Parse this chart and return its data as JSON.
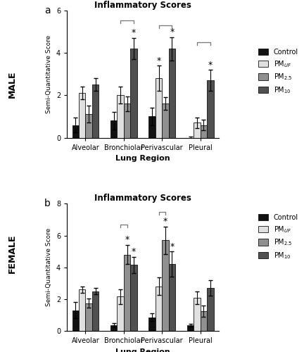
{
  "title": "Inflammatory Scores",
  "xlabel": "Lung Region",
  "ylabel": "Semi-Quantitative Score",
  "categories": [
    "Alveolar",
    "Bronchiolar",
    "Perivascular",
    "Pleural"
  ],
  "male_means": {
    "Control": [
      0.6,
      0.8,
      1.0,
      0.0
    ],
    "PM_UF": [
      2.1,
      2.0,
      2.8,
      0.7
    ],
    "PM_25": [
      1.1,
      1.6,
      1.6,
      0.6
    ],
    "PM_10": [
      2.5,
      4.2,
      4.2,
      2.7
    ]
  },
  "male_sems": {
    "Control": [
      0.35,
      0.4,
      0.4,
      0.05
    ],
    "PM_UF": [
      0.3,
      0.4,
      0.6,
      0.25
    ],
    "PM_25": [
      0.4,
      0.35,
      0.3,
      0.25
    ],
    "PM_10": [
      0.3,
      0.5,
      0.55,
      0.5
    ]
  },
  "female_means": {
    "Control": [
      1.3,
      0.35,
      0.85,
      0.35
    ],
    "PM_UF": [
      2.6,
      2.15,
      2.8,
      2.1
    ],
    "PM_25": [
      1.75,
      4.8,
      5.7,
      1.25
    ],
    "PM_10": [
      2.5,
      4.15,
      4.2,
      2.7
    ]
  },
  "female_sems": {
    "Control": [
      0.5,
      0.15,
      0.25,
      0.1
    ],
    "PM_UF": [
      0.2,
      0.45,
      0.55,
      0.4
    ],
    "PM_25": [
      0.3,
      0.6,
      0.85,
      0.35
    ],
    "PM_10": [
      0.2,
      0.5,
      0.8,
      0.5
    ]
  },
  "male_ylim": [
    0,
    6
  ],
  "female_ylim": [
    0,
    8
  ],
  "male_yticks": [
    0,
    2,
    4,
    6
  ],
  "female_yticks": [
    0,
    2,
    4,
    6,
    8
  ],
  "bar_colors": [
    "#111111",
    "#e0e0e0",
    "#909090",
    "#505050"
  ],
  "bar_edgecolor": "#111111",
  "legend_labels": [
    "Control",
    "PM$_{UF}$",
    "PM$_{2.5}$",
    "PM$_{10}$"
  ],
  "fig_width": 4.32,
  "fig_height": 5.0,
  "dpi": 100,
  "subplot_label_a": "a",
  "subplot_label_b": "b",
  "sex_label_male": "MALE",
  "sex_label_female": "FEMALE"
}
